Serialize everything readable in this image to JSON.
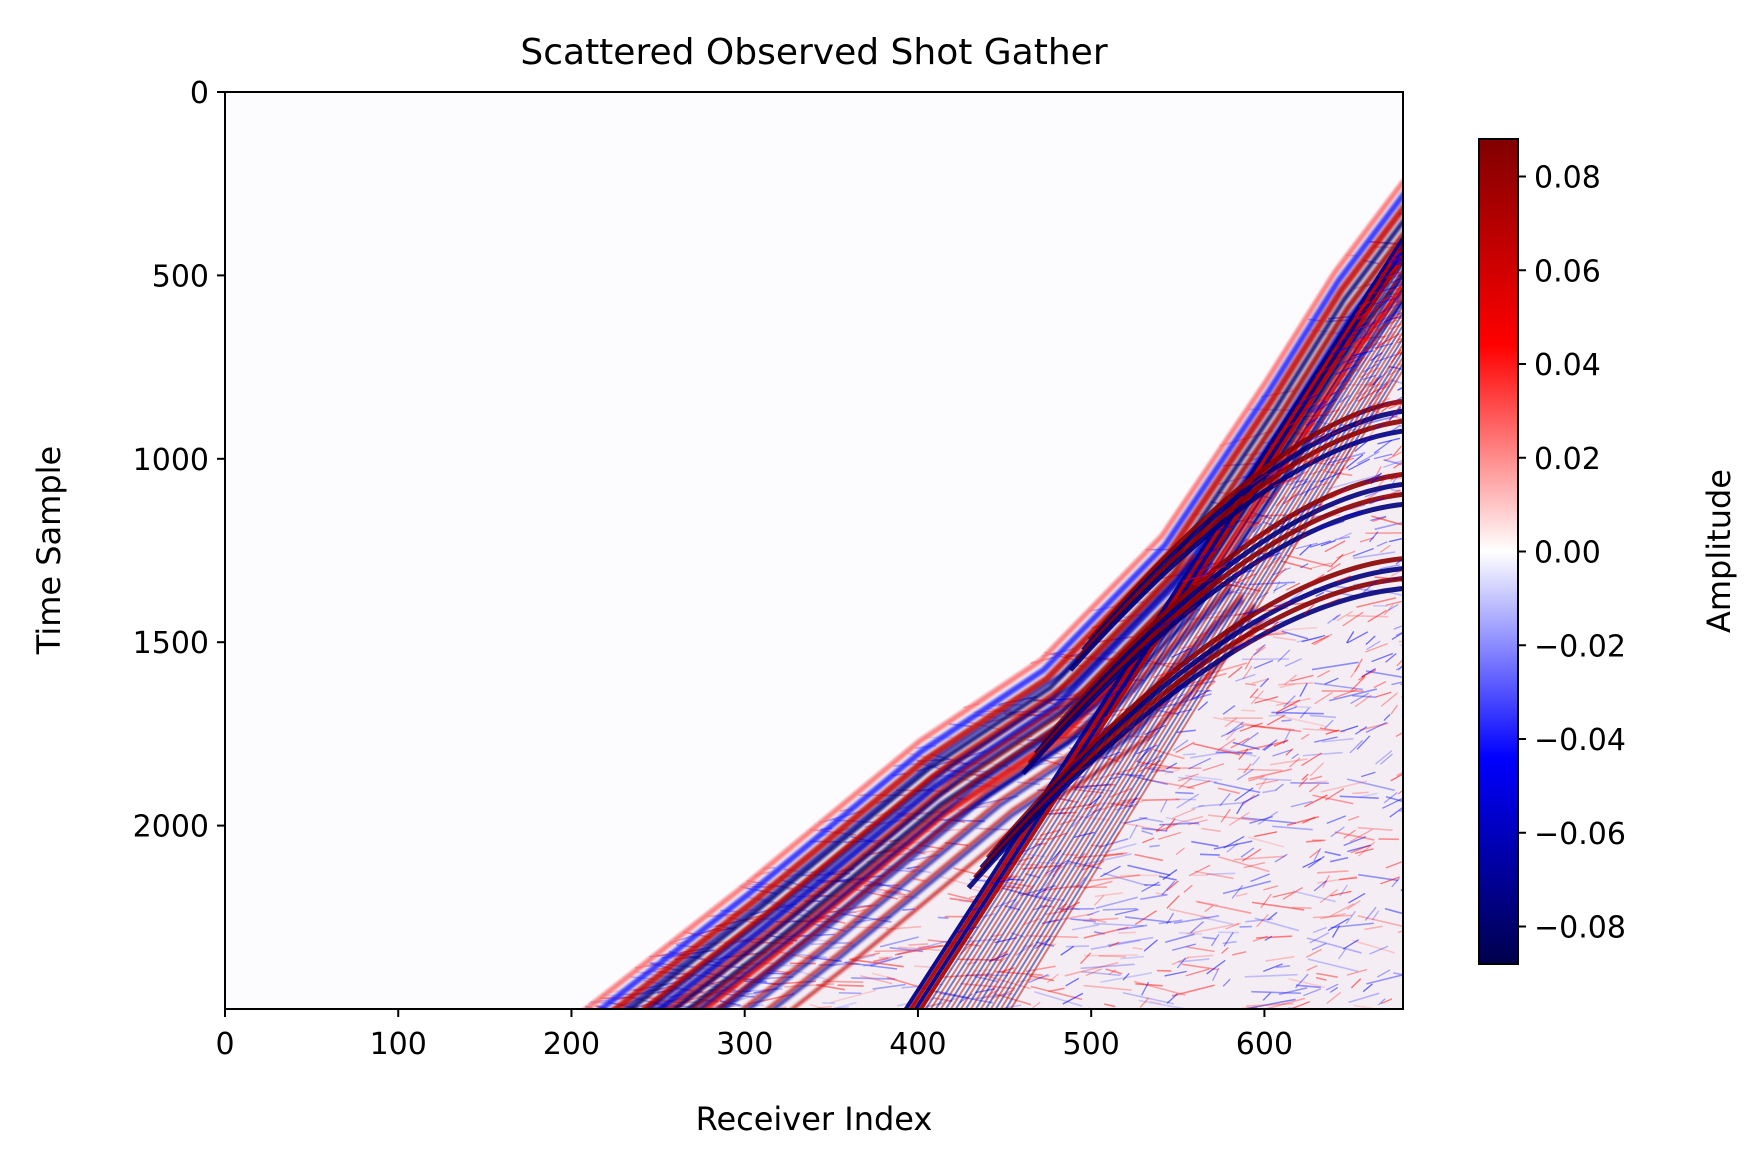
{
  "chart_data": {
    "type": "heatmap",
    "title": "Scattered Observed Shot Gather",
    "xlabel": "Receiver Index",
    "ylabel": "Time Sample",
    "xlim": [
      0,
      680
    ],
    "ylim": [
      2500,
      0
    ],
    "y_inverted": true,
    "x_ticks": [
      0,
      100,
      200,
      300,
      400,
      500,
      600
    ],
    "y_ticks": [
      0,
      500,
      1000,
      1500,
      2000
    ],
    "colormap": "seismic",
    "colormap_colors": [
      "#00004c",
      "#0000ff",
      "#ffffff",
      "#ff0000",
      "#800000"
    ],
    "colorbar": {
      "label": "Amplitude",
      "range": [
        -0.088,
        0.088
      ],
      "ticks": [
        0.08,
        0.06,
        0.04,
        0.02,
        0.0,
        -0.02,
        -0.04,
        -0.06,
        -0.08
      ],
      "tick_labels": [
        "0.08",
        "0.06",
        "0.04",
        "0.02",
        "0.00",
        "−0.02",
        "−0.04",
        "−0.06",
        "−0.08"
      ]
    },
    "first_arrival_curve": [
      {
        "x": 205,
        "y": 2500
      },
      {
        "x": 300,
        "y": 2150
      },
      {
        "x": 400,
        "y": 1760
      },
      {
        "x": 470,
        "y": 1540
      },
      {
        "x": 540,
        "y": 1200
      },
      {
        "x": 600,
        "y": 780
      },
      {
        "x": 640,
        "y": 480
      },
      {
        "x": 680,
        "y": 230
      }
    ],
    "direct_wave_line": [
      {
        "x": 393,
        "y": 2500
      },
      {
        "x": 680,
        "y": 400
      }
    ],
    "reflection_events": [
      {
        "x": 680,
        "y": 840
      },
      {
        "x": 680,
        "y": 1040
      },
      {
        "x": 680,
        "y": 1270
      }
    ]
  }
}
